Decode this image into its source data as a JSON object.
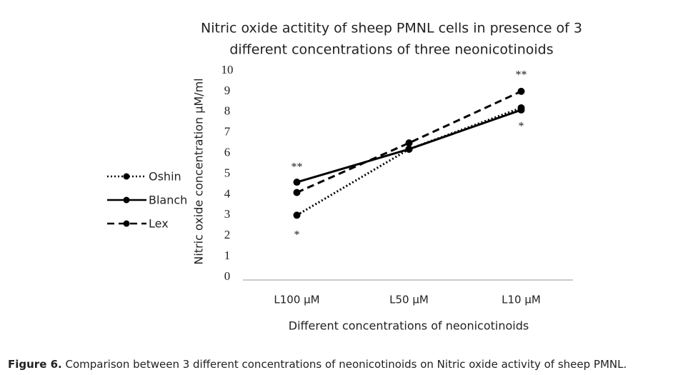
{
  "chart_data": {
    "type": "line",
    "title": [
      "Nitric oxide actitity of sheep PMNL cells in presence of 3",
      "different concentrations of three neonicotinoids"
    ],
    "x_label": "Different concentrations of neonicotinoids",
    "y_label": "Nitric oxide concentration µM/ml",
    "categories": [
      "L100 µM",
      "L50 µM",
      "L10 µM"
    ],
    "series": [
      {
        "name": "Oshin",
        "color": "#000000",
        "linestyle": "dotted",
        "values": [
          3.0,
          6.2,
          8.2
        ]
      },
      {
        "name": "Blanch",
        "color": "#000000",
        "linestyle": "solid",
        "values": [
          4.6,
          6.2,
          8.1
        ]
      },
      {
        "name": "Lex",
        "color": "#000000",
        "linestyle": "dashed",
        "values": [
          4.1,
          6.5,
          9.0
        ]
      }
    ],
    "annotations": [
      "**",
      "*",
      "**",
      "*"
    ],
    "ylim": [
      0,
      10
    ],
    "yticks": [
      0,
      1,
      2,
      3,
      4,
      5,
      6,
      7,
      8,
      9,
      10
    ],
    "grid": false,
    "legend": "left",
    "caption": {
      "label": "Figure 6.",
      "text": "Comparison between 3 different concentrations of neonicotinoids on Nitric oxide activity of sheep PMNL."
    }
  }
}
